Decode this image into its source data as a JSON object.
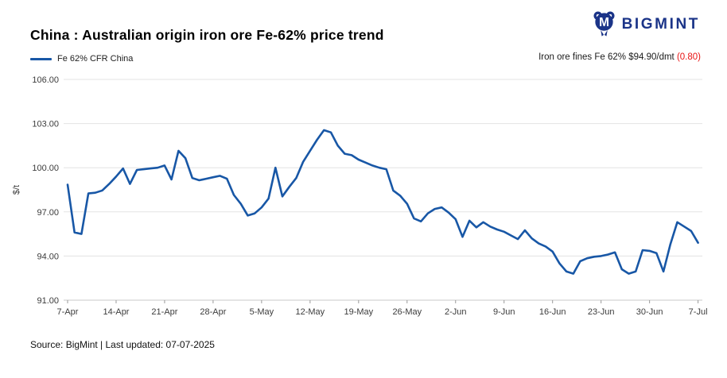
{
  "header": {
    "title": "China : Australian origin iron ore Fe-62% price trend",
    "legend_label": "Fe 62% CFR China",
    "price_note": "Iron ore fines Fe 62% $94.90/dmt ",
    "price_change": "(0.80)"
  },
  "logo": {
    "text": "BIGMINT"
  },
  "footer": {
    "source": "Source: BigMint | Last updated: 07-07-2025"
  },
  "colors": {
    "line": "#1857a6",
    "logo_navy": "#1b3488",
    "change_red": "#e91313",
    "grid": "#e3e3e3",
    "baseline": "#c9c9c9",
    "tick": "#9a9a9a",
    "axis_text": "#3c3c3c"
  },
  "chart_data": {
    "type": "line",
    "title": "China : Australian origin iron ore Fe-62% price trend",
    "xlabel": "",
    "ylabel": "$/t",
    "ylim": [
      91,
      106
    ],
    "grid": "horizontal",
    "legend_position": "top-left",
    "yticks": [
      {
        "value": 91,
        "label": "91.00"
      },
      {
        "value": 94,
        "label": "94.00"
      },
      {
        "value": 97,
        "label": "97.00"
      },
      {
        "value": 100,
        "label": "100.00"
      },
      {
        "value": 103,
        "label": "103.00"
      },
      {
        "value": 106,
        "label": "106.00"
      }
    ],
    "xticks": [
      {
        "day": 0,
        "label": "7-Apr"
      },
      {
        "day": 7,
        "label": "14-Apr"
      },
      {
        "day": 14,
        "label": "21-Apr"
      },
      {
        "day": 21,
        "label": "28-Apr"
      },
      {
        "day": 28,
        "label": "5-May"
      },
      {
        "day": 35,
        "label": "12-May"
      },
      {
        "day": 42,
        "label": "19-May"
      },
      {
        "day": 49,
        "label": "26-May"
      },
      {
        "day": 56,
        "label": "2-Jun"
      },
      {
        "day": 63,
        "label": "9-Jun"
      },
      {
        "day": 70,
        "label": "16-Jun"
      },
      {
        "day": 77,
        "label": "23-Jun"
      },
      {
        "day": 84,
        "label": "30-Jun"
      },
      {
        "day": 91,
        "label": "7-Jul"
      }
    ],
    "series": [
      {
        "name": "Fe 62% CFR China",
        "unit": "$/dmt",
        "dates": [
          "7-Apr",
          "8-Apr",
          "9-Apr",
          "10-Apr",
          "11-Apr",
          "12-Apr",
          "13-Apr",
          "14-Apr",
          "15-Apr",
          "16-Apr",
          "17-Apr",
          "18-Apr",
          "19-Apr",
          "20-Apr",
          "21-Apr",
          "22-Apr",
          "23-Apr",
          "24-Apr",
          "25-Apr",
          "26-Apr",
          "27-Apr",
          "28-Apr",
          "29-Apr",
          "30-Apr",
          "1-May",
          "2-May",
          "3-May",
          "4-May",
          "5-May",
          "6-May",
          "7-May",
          "8-May",
          "9-May",
          "10-May",
          "11-May",
          "12-May",
          "13-May",
          "14-May",
          "15-May",
          "16-May",
          "17-May",
          "18-May",
          "19-May",
          "20-May",
          "21-May",
          "22-May",
          "23-May",
          "24-May",
          "25-May",
          "26-May",
          "27-May",
          "28-May",
          "29-May",
          "30-May",
          "31-May",
          "1-Jun",
          "2-Jun",
          "3-Jun",
          "4-Jun",
          "5-Jun",
          "6-Jun",
          "7-Jun",
          "8-Jun",
          "9-Jun",
          "10-Jun",
          "11-Jun",
          "12-Jun",
          "13-Jun",
          "14-Jun",
          "15-Jun",
          "16-Jun",
          "17-Jun",
          "18-Jun",
          "19-Jun",
          "20-Jun",
          "21-Jun",
          "22-Jun",
          "23-Jun",
          "24-Jun",
          "25-Jun",
          "26-Jun",
          "27-Jun",
          "28-Jun",
          "29-Jun",
          "30-Jun",
          "1-Jul",
          "2-Jul",
          "3-Jul",
          "4-Jul",
          "5-Jul",
          "6-Jul",
          "7-Jul"
        ],
        "values": [
          98.85,
          95.6,
          95.5,
          98.25,
          98.3,
          98.45,
          98.9,
          99.4,
          99.95,
          98.9,
          99.85,
          99.9,
          99.95,
          100.0,
          100.15,
          99.2,
          101.15,
          100.65,
          99.3,
          99.15,
          99.25,
          99.35,
          99.45,
          99.25,
          98.15,
          97.55,
          96.75,
          96.9,
          97.3,
          97.9,
          100.0,
          98.05,
          98.7,
          99.3,
          100.4,
          101.15,
          101.9,
          102.55,
          102.4,
          101.5,
          100.95,
          100.85,
          100.55,
          100.35,
          100.15,
          100.0,
          99.9,
          98.45,
          98.1,
          97.55,
          96.55,
          96.35,
          96.9,
          97.2,
          97.3,
          96.95,
          96.5,
          95.3,
          96.4,
          95.95,
          96.3,
          96.0,
          95.8,
          95.65,
          95.4,
          95.15,
          95.75,
          95.2,
          94.85,
          94.65,
          94.3,
          93.5,
          92.95,
          92.8,
          93.65,
          93.85,
          93.95,
          94.0,
          94.1,
          94.25,
          93.1,
          92.8,
          92.95,
          94.4,
          94.35,
          94.2,
          92.95,
          94.8,
          96.3,
          96.0,
          95.7,
          94.9
        ]
      }
    ],
    "latest": {
      "value": "94.90",
      "change": "-0.80"
    }
  }
}
